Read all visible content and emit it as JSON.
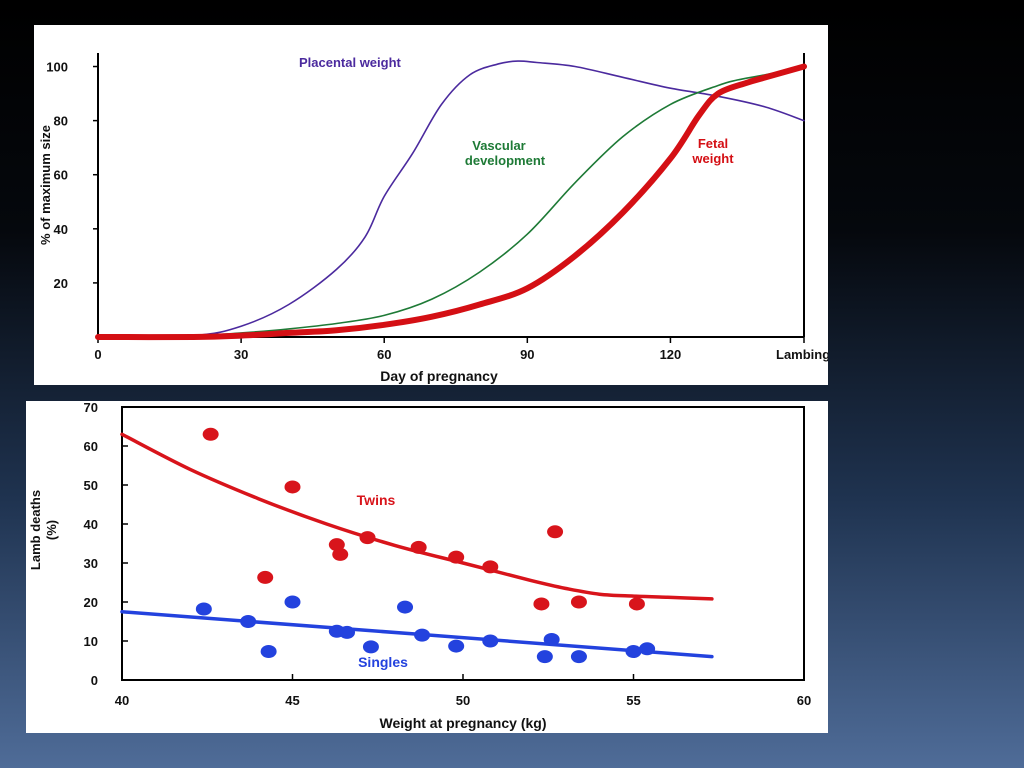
{
  "chart_data": [
    {
      "type": "line",
      "title": "",
      "xlabel": "Day of pregnancy",
      "ylabel": "% of maximum size",
      "xlim": [
        0,
        148
      ],
      "ylim": [
        0,
        105
      ],
      "xticks": [
        0,
        30,
        60,
        90,
        120
      ],
      "xtick_labels": [
        "0",
        "30",
        "60",
        "90",
        "120"
      ],
      "x_end_label": "Lambing",
      "yticks": [
        20,
        40,
        60,
        80,
        100
      ],
      "series": [
        {
          "name": "Placental weight",
          "color": "#4b2a9e",
          "x": [
            0,
            20,
            30,
            40,
            50,
            56,
            60,
            66,
            72,
            78,
            84,
            88,
            92,
            100,
            110,
            120,
            130,
            140,
            148
          ],
          "y": [
            0,
            0.5,
            4,
            12,
            25,
            37,
            52,
            68,
            86,
            97,
            101,
            102,
            101.5,
            100,
            96,
            92,
            89,
            85,
            80
          ]
        },
        {
          "name": "Vascular development",
          "color": "#1e7a36",
          "x": [
            0,
            20,
            30,
            40,
            50,
            60,
            70,
            80,
            90,
            100,
            110,
            120,
            130,
            134,
            140,
            148
          ],
          "y": [
            0,
            0.5,
            1.5,
            3,
            5,
            8,
            14,
            24,
            38,
            57,
            74,
            86,
            93,
            95,
            97,
            100
          ]
        },
        {
          "name": "Fetal weight",
          "color": "#d40f14",
          "x": [
            0,
            20,
            30,
            40,
            50,
            60,
            70,
            80,
            90,
            100,
            110,
            120,
            126,
            130,
            136,
            140,
            148
          ],
          "y": [
            0,
            0,
            0.5,
            1.5,
            2.5,
            4.5,
            7.5,
            12,
            18,
            30,
            46,
            66,
            82,
            90,
            94,
            96,
            100
          ]
        }
      ],
      "annotations": {
        "placental": "Placental weight",
        "vascular_line1": "Vascular",
        "vascular_line2": "development",
        "fetal_line1": "Fetal",
        "fetal_line2": "weight"
      }
    },
    {
      "type": "scatter",
      "title": "",
      "xlabel": "Weight at pregnancy (kg)",
      "ylabel_line1": "Lamb deaths",
      "ylabel_line2": "(%)",
      "xlim": [
        40,
        60
      ],
      "ylim": [
        0,
        70
      ],
      "xticks": [
        40,
        45,
        50,
        55,
        60
      ],
      "yticks": [
        0,
        10,
        20,
        30,
        40,
        50,
        60,
        70
      ],
      "series": [
        {
          "name": "Twins",
          "color": "#d8141b",
          "points": [
            [
              42.6,
              63
            ],
            [
              45,
              49.5
            ],
            [
              44.2,
              26.3
            ],
            [
              46.3,
              34.7
            ],
            [
              46.4,
              32.2
            ],
            [
              47.2,
              36.5
            ],
            [
              48.7,
              34
            ],
            [
              49.8,
              31.5
            ],
            [
              50.8,
              29
            ],
            [
              52.3,
              19.5
            ],
            [
              52.7,
              38
            ],
            [
              53.4,
              20
            ],
            [
              55.1,
              19.5
            ]
          ],
          "trend": {
            "x": [
              40,
              42,
              44,
              46,
              48,
              50,
              52,
              53,
              54,
              55,
              56,
              57.3
            ],
            "y": [
              63,
              54,
              46.5,
              40,
              34.5,
              30,
              25.5,
              23.5,
              22,
              21.5,
              21.2,
              20.8
            ]
          }
        },
        {
          "name": "Singles",
          "color": "#2342de",
          "points": [
            [
              42.4,
              18.2
            ],
            [
              43.7,
              15
            ],
            [
              44.3,
              7.3
            ],
            [
              45,
              20
            ],
            [
              46.3,
              12.5
            ],
            [
              46.6,
              12.2
            ],
            [
              47.3,
              8.5
            ],
            [
              48.3,
              18.7
            ],
            [
              48.8,
              11.5
            ],
            [
              49.8,
              8.7
            ],
            [
              50.8,
              10
            ],
            [
              52.4,
              6
            ],
            [
              52.6,
              10.4
            ],
            [
              53.4,
              6
            ],
            [
              55,
              7.3
            ],
            [
              55.4,
              8
            ]
          ],
          "trend": {
            "x": [
              40,
              57.3
            ],
            "y": [
              17.5,
              6
            ]
          }
        }
      ],
      "annotations": {
        "twins": "Twins",
        "singles": "Singles"
      }
    }
  ]
}
